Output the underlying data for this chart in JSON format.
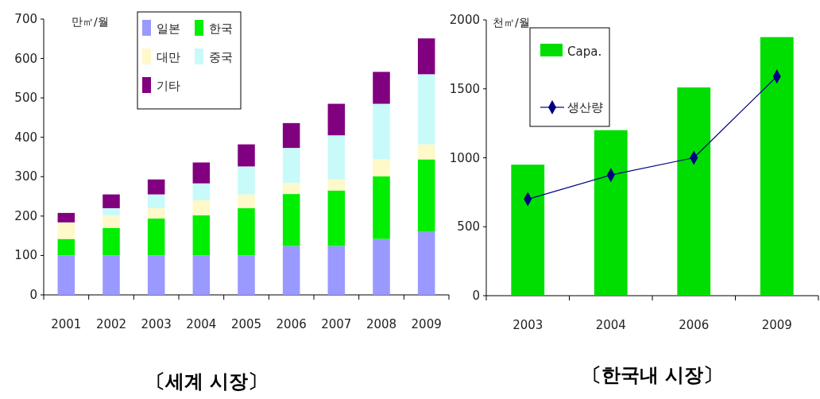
{
  "chart_data": [
    {
      "type": "bar",
      "stacked": true,
      "title": "〔세계 시장〕",
      "ylabel": "만㎡/월",
      "categories": [
        "2001",
        "2002",
        "2003",
        "2004",
        "2005",
        "2006",
        "2007",
        "2008",
        "2009"
      ],
      "ylim": [
        0,
        700
      ],
      "yticks": [
        0,
        100,
        200,
        300,
        400,
        500,
        600,
        700
      ],
      "legend": "top",
      "grid": false,
      "series": [
        {
          "name": "일본",
          "color": "#9999ff",
          "values": [
            100,
            100,
            100,
            100,
            100,
            124,
            124,
            142,
            160
          ]
        },
        {
          "name": "한국",
          "color": "#00ee00",
          "values": [
            42,
            70,
            94,
            102,
            120,
            132,
            141,
            159,
            184
          ]
        },
        {
          "name": "대만",
          "color": "#fff8c8",
          "values": [
            42,
            32,
            26,
            38,
            35,
            28,
            28,
            43,
            38
          ]
        },
        {
          "name": "중국",
          "color": "#c8fafa",
          "values": [
            0,
            18,
            35,
            43,
            71,
            89,
            112,
            141,
            178
          ]
        },
        {
          "name": "기타",
          "color": "#800080",
          "values": [
            24,
            35,
            38,
            53,
            56,
            63,
            80,
            81,
            91
          ]
        }
      ]
    },
    {
      "type": "bar",
      "title": "〔한국내 시장〕",
      "ylabel": "천㎡/월",
      "categories": [
        "2003",
        "2004",
        "2006",
        "2009"
      ],
      "ylim": [
        0,
        2000
      ],
      "yticks": [
        0,
        500,
        1000,
        1500,
        2000
      ],
      "legend": "top left",
      "grid": false,
      "series": [
        {
          "name": "Capa.",
          "color": "#00dd00",
          "values": [
            950,
            1200,
            1510,
            1875
          ]
        },
        {
          "name": "생산량",
          "type": "line",
          "color": "#000080",
          "marker": "diamond",
          "line_style": "solid",
          "values": [
            700,
            875,
            1000,
            1590
          ]
        }
      ]
    }
  ]
}
